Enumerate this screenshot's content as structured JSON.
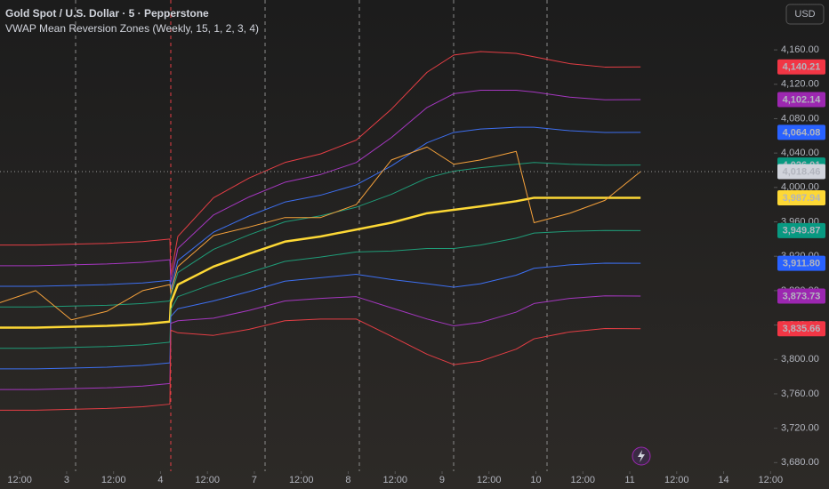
{
  "chart_data": {
    "type": "line",
    "title": "Gold Spot / U.S. Dollar · 5 · Pepperstone",
    "subtitle": "VWAP Mean Reversion Zones (Weekly, 15, 1, 2, 3, 4)",
    "currency": "USD",
    "x": [
      -0.42,
      0.34,
      1.1,
      1.86,
      2.62,
      3.2,
      3.22,
      3.37,
      4.13,
      4.89,
      5.65,
      6.41,
      7.17,
      7.92,
      8.68,
      9.25,
      9.82,
      10.58,
      10.96,
      11.72,
      12.47,
      13.23
    ],
    "xlim": [
      -0.42,
      16.07
    ],
    "xticks": [
      {
        "value": 0,
        "label": "12:00"
      },
      {
        "value": 1,
        "label": "3"
      },
      {
        "value": 2,
        "label": "12:00"
      },
      {
        "value": 3,
        "label": "4"
      },
      {
        "value": 4,
        "label": "12:00"
      },
      {
        "value": 5,
        "label": "7"
      },
      {
        "value": 6,
        "label": "12:00"
      },
      {
        "value": 7,
        "label": "8"
      },
      {
        "value": 8,
        "label": "12:00"
      },
      {
        "value": 9,
        "label": "9"
      },
      {
        "value": 10,
        "label": "12:00"
      },
      {
        "value": 11,
        "label": "10"
      },
      {
        "value": 12,
        "label": "12:00"
      },
      {
        "value": 13,
        "label": "11"
      },
      {
        "value": 14,
        "label": "12:00"
      },
      {
        "value": 15,
        "label": "14"
      },
      {
        "value": 16,
        "label": "12:00"
      }
    ],
    "ylim": [
      3670,
      4218
    ],
    "yticks": [
      {
        "value": 4160,
        "label": "4,160.00"
      },
      {
        "value": 4120,
        "label": "4,120.00"
      },
      {
        "value": 4080,
        "label": "4,080.00"
      },
      {
        "value": 4040,
        "label": "4,040.00"
      },
      {
        "value": 4000,
        "label": "4,000.00"
      },
      {
        "value": 3960,
        "label": "3,960.00"
      },
      {
        "value": 3920,
        "label": "3,920.00"
      },
      {
        "value": 3880,
        "label": "3,880.00"
      },
      {
        "value": 3840,
        "label": "3,840.00"
      },
      {
        "value": 3800,
        "label": "3,800.00"
      },
      {
        "value": 3760,
        "label": "3,760.00"
      },
      {
        "value": 3720,
        "label": "3,720.00"
      },
      {
        "value": 3680,
        "label": "3,680.00"
      }
    ],
    "grid": false,
    "series": [
      {
        "color": "#e53e45",
        "tag_color": "#f23645",
        "last_label": "4,140.21",
        "values": [
          3933,
          3933,
          3934,
          3935,
          3937,
          3940,
          3898,
          3943,
          3988,
          4011,
          4029,
          4039,
          4055,
          4091,
          4134,
          4154,
          4158,
          4156,
          4152,
          4144,
          4140,
          4140.21
        ]
      },
      {
        "color": "#a537c0",
        "tag_color": "#9c27b0",
        "last_label": "4,102.14",
        "values": [
          3909,
          3909,
          3910,
          3911,
          3913,
          3916,
          3890,
          3929,
          3968,
          3989,
          4006,
          4015,
          4029,
          4058,
          4093,
          4109,
          4113,
          4113,
          4111,
          4105,
          4102,
          4102.14
        ]
      },
      {
        "color": "#3d6ff0",
        "tag_color": "#2962ff",
        "last_label": "4,064.08",
        "values": [
          3885,
          3885,
          3886,
          3887,
          3889,
          3892,
          3882,
          3915,
          3948,
          3967,
          3983,
          3991,
          4003,
          4025,
          4052,
          4064,
          4068,
          4070,
          4070,
          4066,
          4064,
          4064.08
        ]
      },
      {
        "color": "#1f9c78",
        "tag_color": "#089981",
        "last_label": "4,026.01",
        "values": [
          3861,
          3861,
          3862,
          3863,
          3865,
          3868,
          3874,
          3901,
          3928,
          3945,
          3960,
          3967,
          3977,
          3992,
          4011,
          4019,
          4023,
          4027,
          4029,
          4027,
          4026,
          4026.01
        ]
      },
      {
        "color": "#fdd835",
        "tag_color": "#fdd835",
        "tag_text": "#131722",
        "width": 2.5,
        "last_label": "3,987.94",
        "values": [
          3837,
          3837,
          3838,
          3839,
          3841,
          3844,
          3866,
          3887,
          3908,
          3923,
          3937,
          3943,
          3951,
          3959,
          3970,
          3974,
          3978,
          3984,
          3988,
          3988,
          3988,
          3987.94
        ]
      },
      {
        "color": "#1f9c78",
        "tag_color": "#089981",
        "last_label": "3,949.87",
        "values": [
          3813,
          3813,
          3814,
          3815,
          3817,
          3820,
          3858,
          3873,
          3888,
          3901,
          3914,
          3919,
          3925,
          3926,
          3929,
          3929,
          3933,
          3941,
          3947,
          3949,
          3950,
          3949.87
        ]
      },
      {
        "color": "#3d6ff0",
        "tag_color": "#2962ff",
        "last_label": "3,911.80",
        "values": [
          3789,
          3789,
          3790,
          3791,
          3793,
          3796,
          3850,
          3859,
          3868,
          3879,
          3891,
          3895,
          3899,
          3893,
          3888,
          3884,
          3888,
          3898,
          3906,
          3910,
          3912,
          3911.8
        ]
      },
      {
        "color": "#a537c0",
        "tag_color": "#9c27b0",
        "last_label": "3,873.73",
        "values": [
          3765,
          3765,
          3766,
          3767,
          3769,
          3772,
          3842,
          3845,
          3848,
          3857,
          3868,
          3871,
          3873,
          3860,
          3847,
          3839,
          3843,
          3855,
          3865,
          3871,
          3874,
          3873.73
        ]
      },
      {
        "color": "#e53e45",
        "tag_color": "#f23645",
        "last_label": "3,835.66",
        "values": [
          3741,
          3741,
          3742,
          3743,
          3745,
          3748,
          3834,
          3831,
          3828,
          3835,
          3845,
          3847,
          3847,
          3827,
          3806,
          3794,
          3798,
          3812,
          3824,
          3832,
          3836,
          3835.66
        ]
      },
      {
        "color": "#f5a13b",
        "tag_color": "#d1d4dc",
        "tag_text": "#131722",
        "last_label": "4,018.46",
        "values": [
          3866,
          3880,
          3846,
          3856,
          3880,
          3887,
          3877,
          3908,
          3944,
          3954,
          3965,
          3965,
          3980,
          4032,
          4047,
          4027,
          4032,
          4042,
          3959,
          3970,
          3985,
          4018.46
        ]
      }
    ]
  }
}
